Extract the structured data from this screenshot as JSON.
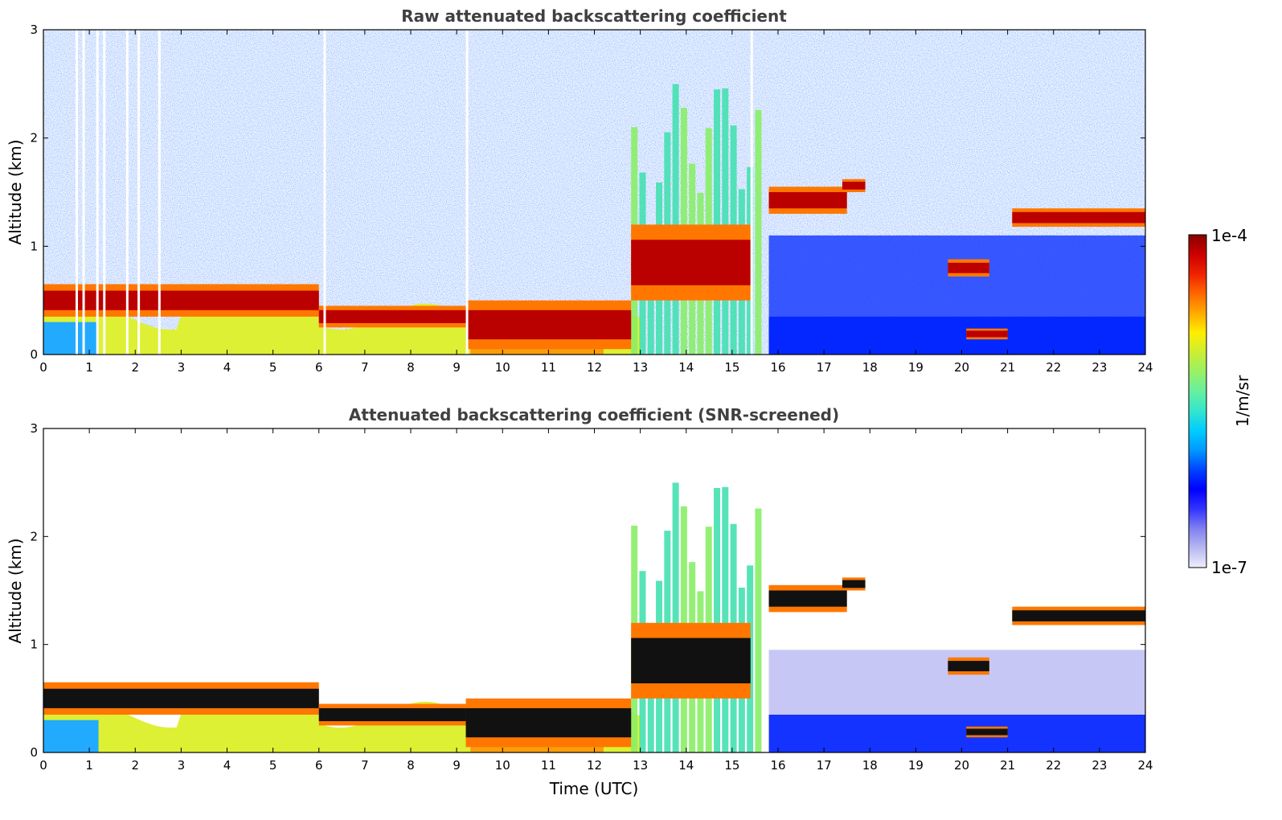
{
  "chart_data": [
    {
      "type": "heatmap",
      "title": "Raw attenuated backscattering coefficient",
      "xlabel": "",
      "ylabel": "Altitude (km)",
      "xlim": [
        0,
        24
      ],
      "ylim": [
        0,
        3
      ],
      "x_ticks": [
        "0",
        "1",
        "2",
        "3",
        "4",
        "5",
        "6",
        "7",
        "8",
        "9",
        "10",
        "11",
        "12",
        "13",
        "14",
        "15",
        "16",
        "17",
        "18",
        "19",
        "20",
        "21",
        "22",
        "23",
        "24"
      ],
      "y_ticks": [
        "0",
        "1",
        "2",
        "3"
      ],
      "screened": false,
      "cloud_layers": [
        {
          "start": 0.0,
          "end": 6.0,
          "base_km": 0.35,
          "top_km": 0.65
        },
        {
          "start": 6.0,
          "end": 9.2,
          "base_km": 0.25,
          "top_km": 0.45
        },
        {
          "start": 9.2,
          "end": 12.8,
          "base_km": 0.05,
          "top_km": 0.5
        },
        {
          "start": 12.8,
          "end": 15.4,
          "base_km": 0.5,
          "top_km": 1.2
        },
        {
          "start": 15.8,
          "end": 17.5,
          "base_km": 1.3,
          "top_km": 1.55
        },
        {
          "start": 17.4,
          "end": 17.9,
          "base_km": 1.5,
          "top_km": 1.62
        },
        {
          "start": 19.7,
          "end": 20.6,
          "base_km": 0.72,
          "top_km": 0.88
        },
        {
          "start": 20.1,
          "end": 21.0,
          "base_km": 0.14,
          "top_km": 0.24
        },
        {
          "start": 21.1,
          "end": 24.0,
          "base_km": 1.18,
          "top_km": 1.35
        }
      ]
    },
    {
      "type": "heatmap",
      "title": "Attenuated backscattering coefficient (SNR-screened)",
      "xlabel": "Time (UTC)",
      "ylabel": "Altitude (km)",
      "xlim": [
        0,
        24
      ],
      "ylim": [
        0,
        3
      ],
      "x_ticks": [
        "0",
        "1",
        "2",
        "3",
        "4",
        "5",
        "6",
        "7",
        "8",
        "9",
        "10",
        "11",
        "12",
        "13",
        "14",
        "15",
        "16",
        "17",
        "18",
        "19",
        "20",
        "21",
        "22",
        "23",
        "24"
      ],
      "y_ticks": [
        "0",
        "1",
        "2",
        "3"
      ],
      "screened": true,
      "cloud_layers": [
        {
          "start": 0.0,
          "end": 6.0,
          "base_km": 0.35,
          "top_km": 0.65
        },
        {
          "start": 6.0,
          "end": 9.2,
          "base_km": 0.25,
          "top_km": 0.45
        },
        {
          "start": 9.2,
          "end": 12.8,
          "base_km": 0.05,
          "top_km": 0.5
        },
        {
          "start": 12.8,
          "end": 15.4,
          "base_km": 0.5,
          "top_km": 1.2
        },
        {
          "start": 15.8,
          "end": 17.5,
          "base_km": 1.3,
          "top_km": 1.55
        },
        {
          "start": 17.4,
          "end": 17.9,
          "base_km": 1.5,
          "top_km": 1.62
        },
        {
          "start": 19.7,
          "end": 20.6,
          "base_km": 0.72,
          "top_km": 0.88
        },
        {
          "start": 20.1,
          "end": 21.0,
          "base_km": 0.14,
          "top_km": 0.24
        },
        {
          "start": 21.1,
          "end": 24.0,
          "base_km": 1.18,
          "top_km": 1.35
        }
      ]
    }
  ],
  "colorbar": {
    "label": "1/m/sr",
    "max_label": "1e-4",
    "min_label": "1e-7",
    "colors": [
      "#eeeeff",
      "#b8b8f0",
      "#8080f0",
      "#3333ff",
      "#0000ff",
      "#0044ff",
      "#0099ff",
      "#00ccff",
      "#33e6cc",
      "#66f0a0",
      "#99f066",
      "#ccee33",
      "#ffee00",
      "#ffaa00",
      "#ff6600",
      "#ee2200",
      "#cc0000",
      "#880000"
    ]
  }
}
